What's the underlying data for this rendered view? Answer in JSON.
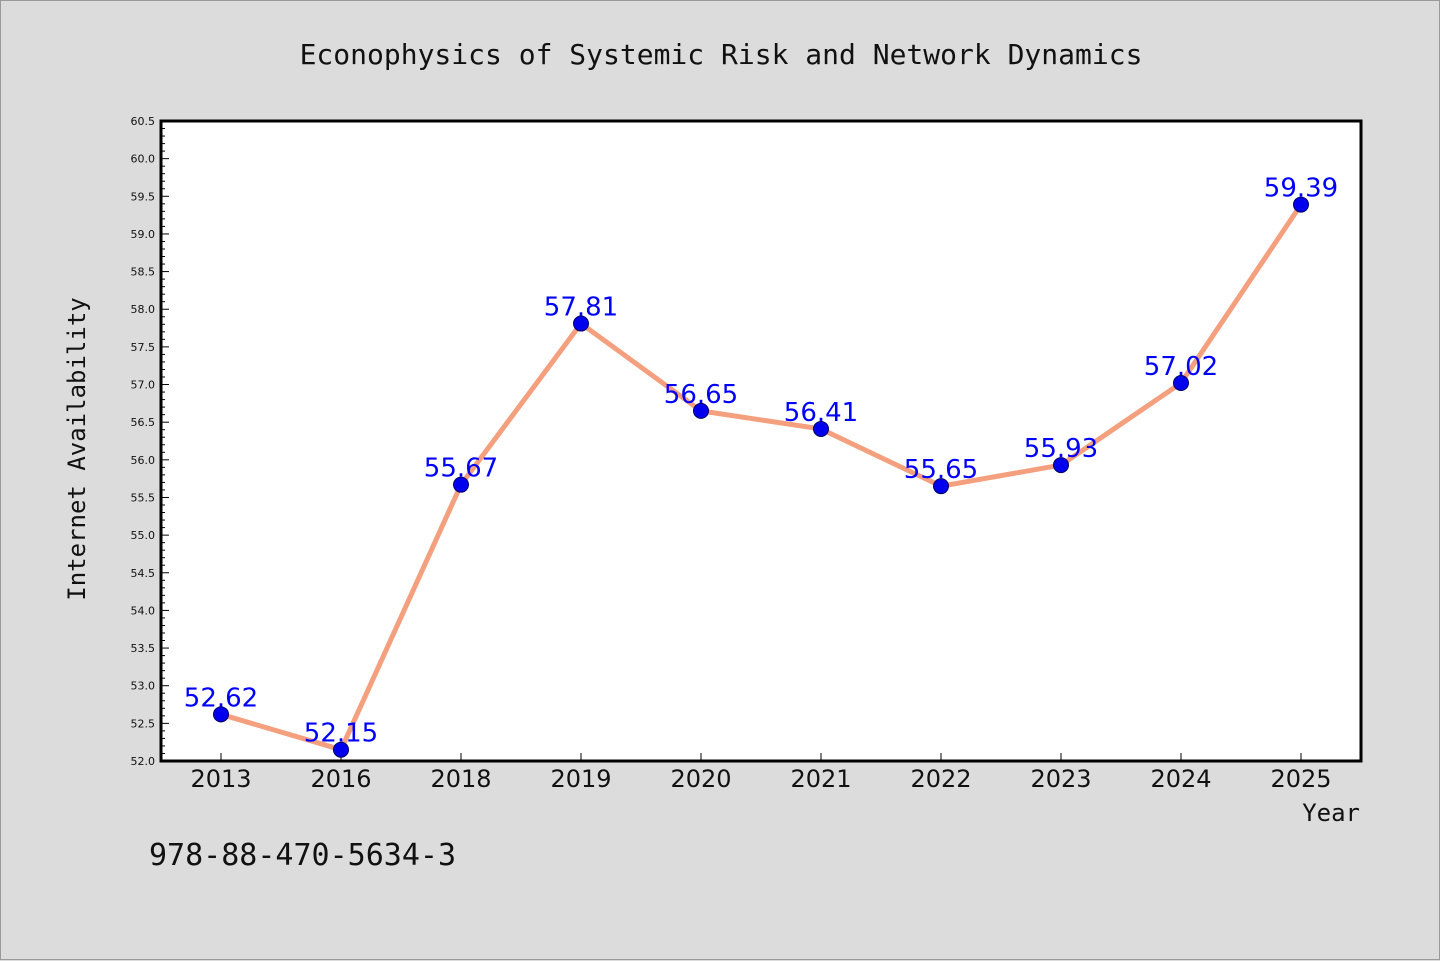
{
  "chart_data": {
    "type": "line",
    "title": "Econophysics of Systemic Risk and Network Dynamics",
    "xlabel": "Year",
    "ylabel": "Internet Availability",
    "categories": [
      "2013",
      "2016",
      "2018",
      "2019",
      "2020",
      "2021",
      "2022",
      "2023",
      "2024",
      "2025"
    ],
    "series": [
      {
        "values": [
          52.62,
          52.15,
          55.67,
          57.81,
          56.65,
          56.41,
          55.65,
          55.93,
          57.02,
          59.39
        ]
      }
    ],
    "data_labels": [
      "52.62",
      "52.15",
      "55.67",
      "57.81",
      "56.65",
      "56.41",
      "55.65",
      "55.93",
      "57.02",
      "59.39"
    ],
    "ylim": [
      52.0,
      60.5
    ],
    "yticks": [
      "52.0",
      "52.5",
      "53.0",
      "53.5",
      "54.0",
      "54.5",
      "55.0",
      "55.5",
      "56.0",
      "56.5",
      "57.0",
      "57.5",
      "58.0",
      "58.5",
      "59.0",
      "59.5",
      "60.0",
      "60.5"
    ],
    "grid": false,
    "legend": "none",
    "colors": {
      "line": "#f4a07e",
      "marker": "#0000ee",
      "label": "#0000ff",
      "background": "#dcdcdc",
      "plot_background": "#ffffff"
    }
  },
  "annotation": "978-88-470-5634-3"
}
